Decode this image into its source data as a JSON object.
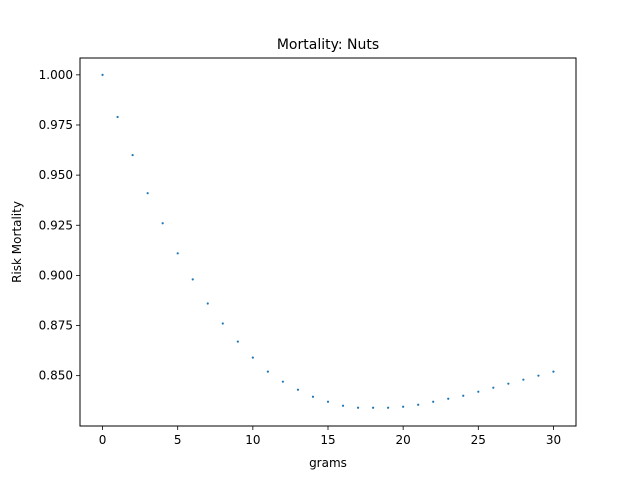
{
  "chart_data": {
    "type": "scatter",
    "title": "Mortality: Nuts",
    "xlabel": "grams",
    "ylabel": "Risk Mortality",
    "xlim": [
      -1.5,
      31.5
    ],
    "ylim": [
      0.8249,
      1.0084
    ],
    "xticks": [
      0,
      5,
      10,
      15,
      20,
      25,
      30
    ],
    "xtick_labels": [
      "0",
      "5",
      "10",
      "15",
      "20",
      "25",
      "30"
    ],
    "yticks": [
      0.85,
      0.875,
      0.9,
      0.925,
      0.95,
      0.975,
      1.0
    ],
    "ytick_labels": [
      "0.850",
      "0.875",
      "0.900",
      "0.925",
      "0.950",
      "0.975",
      "1.000"
    ],
    "grid": false,
    "color": "#1f77b4",
    "x": [
      0,
      1,
      2,
      3,
      4,
      5,
      6,
      7,
      8,
      9,
      10,
      11,
      12,
      13,
      14,
      15,
      16,
      17,
      18,
      19,
      20,
      21,
      22,
      23,
      24,
      25,
      26,
      27,
      28,
      29,
      30
    ],
    "y": [
      1.0,
      0.979,
      0.96,
      0.941,
      0.926,
      0.911,
      0.898,
      0.886,
      0.876,
      0.867,
      0.859,
      0.852,
      0.847,
      0.843,
      0.8395,
      0.837,
      0.835,
      0.834,
      0.834,
      0.834,
      0.8345,
      0.8355,
      0.837,
      0.8385,
      0.84,
      0.842,
      0.844,
      0.846,
      0.848,
      0.85,
      0.852
    ]
  }
}
